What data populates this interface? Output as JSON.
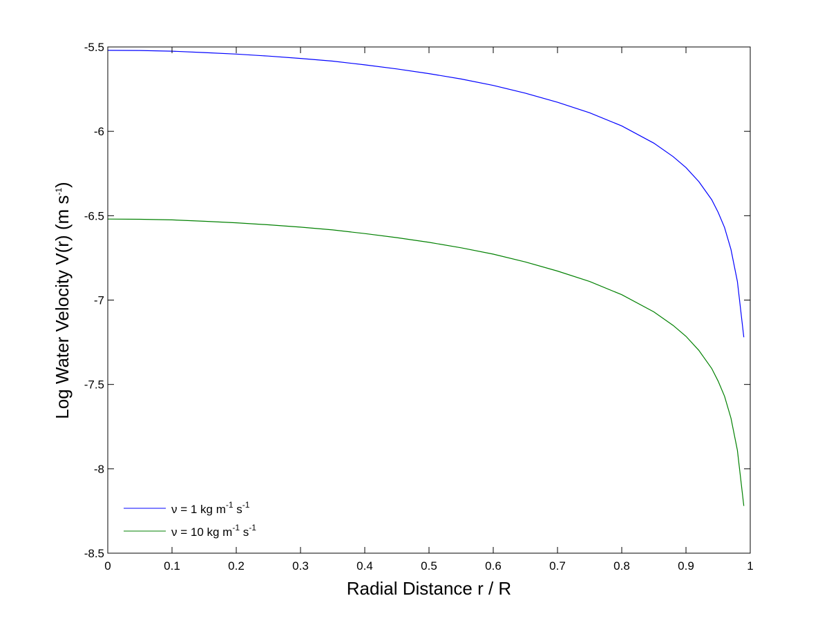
{
  "chart_data": {
    "type": "line",
    "title": "",
    "xlabel": "Radial Distance r / R",
    "ylabel": {
      "main": "Log Water Velocity V(r) (m s",
      "sup": "-1",
      "close": ")"
    },
    "xlim": [
      0,
      1
    ],
    "ylim": [
      -8.5,
      -5.5
    ],
    "x_ticks": [
      "0",
      "0.1",
      "0.2",
      "0.3",
      "0.4",
      "0.5",
      "0.6",
      "0.7",
      "0.8",
      "0.9",
      "1"
    ],
    "y_ticks": [
      "-5.5",
      "-6",
      "-6.5",
      "-7",
      "-7.5",
      "-8",
      "-8.5"
    ],
    "grid": false,
    "legend_position": "bottom-left",
    "series": [
      {
        "legend": {
          "prefix": "ν = 1 kg m",
          "sup1": "-1",
          "mid": " s",
          "sup2": "-1"
        },
        "color": "#0000ff",
        "x": [
          0,
          0.05,
          0.1,
          0.15,
          0.2,
          0.25,
          0.3,
          0.35,
          0.4,
          0.45,
          0.5,
          0.55,
          0.6,
          0.65,
          0.7,
          0.75,
          0.8,
          0.85,
          0.88,
          0.9,
          0.92,
          0.94,
          0.95,
          0.96,
          0.97,
          0.98,
          0.99
        ],
        "y": [
          -5.52,
          -5.521,
          -5.525,
          -5.533,
          -5.542,
          -5.554,
          -5.568,
          -5.584,
          -5.606,
          -5.63,
          -5.658,
          -5.69,
          -5.728,
          -5.774,
          -5.828,
          -5.89,
          -5.968,
          -6.07,
          -6.15,
          -6.215,
          -6.298,
          -6.405,
          -6.48,
          -6.57,
          -6.7,
          -6.89,
          -7.22
        ]
      },
      {
        "legend": {
          "prefix": "ν = 10 kg m",
          "sup1": "-1",
          "mid": " s",
          "sup2": "-1"
        },
        "color": "#008000",
        "x": [
          0,
          0.05,
          0.1,
          0.15,
          0.2,
          0.25,
          0.3,
          0.35,
          0.4,
          0.45,
          0.5,
          0.55,
          0.6,
          0.65,
          0.7,
          0.75,
          0.8,
          0.85,
          0.88,
          0.9,
          0.92,
          0.94,
          0.95,
          0.96,
          0.97,
          0.98,
          0.99
        ],
        "y": [
          -6.52,
          -6.521,
          -6.525,
          -6.533,
          -6.542,
          -6.554,
          -6.568,
          -6.584,
          -6.606,
          -6.63,
          -6.658,
          -6.69,
          -6.728,
          -6.774,
          -6.828,
          -6.89,
          -6.968,
          -7.07,
          -7.15,
          -7.215,
          -7.298,
          -7.405,
          -7.48,
          -7.57,
          -7.7,
          -7.89,
          -8.22
        ]
      }
    ]
  }
}
